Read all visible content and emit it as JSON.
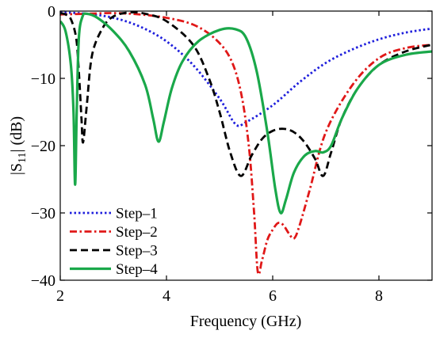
{
  "chart_data": {
    "type": "line",
    "xlabel": "Frequency (GHz)",
    "ylabel": {
      "prefix": "|S",
      "sub": "11",
      "suffix": "| (dB)"
    },
    "xlim": [
      2,
      9
    ],
    "ylim": [
      -40,
      0
    ],
    "xticks": [
      2,
      4,
      6,
      8
    ],
    "yticks": [
      0,
      -10,
      -20,
      -30,
      -40
    ],
    "grid": false,
    "legend_position": "bottom-left",
    "series": [
      {
        "name": "Step–1",
        "color": "#1f1fdc",
        "dash": "dotted",
        "x": [
          2.0,
          2.5,
          3.0,
          3.5,
          4.0,
          4.5,
          5.0,
          5.3,
          5.5,
          6.0,
          6.5,
          7.0,
          7.5,
          8.0,
          8.5,
          9.0
        ],
        "y": [
          -0.2,
          -0.4,
          -1.0,
          -2.3,
          -4.5,
          -8.0,
          -13.0,
          -16.8,
          -16.5,
          -14.0,
          -10.6,
          -7.7,
          -5.7,
          -4.2,
          -3.2,
          -2.6
        ]
      },
      {
        "name": "Step–2",
        "color": "#e01818",
        "dash": "dashdot",
        "x": [
          2.0,
          2.5,
          3.0,
          3.5,
          4.0,
          4.5,
          4.9,
          5.2,
          5.4,
          5.55,
          5.65,
          5.72,
          5.8,
          5.9,
          6.0,
          6.1,
          6.2,
          6.3,
          6.4,
          6.5,
          6.7,
          7.0,
          7.5,
          8.0,
          8.5,
          9.0
        ],
        "y": [
          -0.5,
          -0.4,
          -0.3,
          -0.5,
          -1.0,
          -2.0,
          -4.0,
          -7.0,
          -12.0,
          -20.0,
          -30.0,
          -38.8,
          -37.0,
          -34.0,
          -32.5,
          -31.5,
          -31.8,
          -33.0,
          -33.8,
          -32.0,
          -26.5,
          -18.0,
          -11.0,
          -7.0,
          -5.5,
          -5.0
        ]
      },
      {
        "name": "Step–3",
        "color": "#000000",
        "dash": "dashed",
        "x": [
          2.0,
          2.1,
          2.2,
          2.3,
          2.35,
          2.4,
          2.43,
          2.5,
          2.6,
          2.8,
          3.0,
          3.3,
          3.6,
          4.0,
          4.5,
          4.8,
          5.0,
          5.2,
          5.4,
          5.6,
          5.8,
          6.0,
          6.2,
          6.4,
          6.6,
          6.8,
          6.95,
          7.1,
          7.3,
          7.6,
          8.0,
          8.5,
          9.0
        ],
        "y": [
          -0.3,
          -0.5,
          -1.2,
          -4.0,
          -9.0,
          -16.0,
          -19.5,
          -14.0,
          -6.5,
          -2.5,
          -0.8,
          -0.2,
          -0.4,
          -1.5,
          -5.0,
          -10.0,
          -15.0,
          -21.0,
          -24.5,
          -21.5,
          -19.0,
          -17.8,
          -17.5,
          -18.0,
          -19.5,
          -22.0,
          -24.5,
          -21.0,
          -16.0,
          -11.5,
          -8.0,
          -6.0,
          -5.0
        ]
      },
      {
        "name": "Step–4",
        "color": "#1aa84a",
        "dash": "solid",
        "x": [
          2.0,
          2.1,
          2.2,
          2.25,
          2.28,
          2.31,
          2.35,
          2.42,
          2.5,
          2.7,
          3.0,
          3.3,
          3.6,
          3.75,
          3.85,
          3.95,
          4.1,
          4.3,
          4.6,
          5.0,
          5.3,
          5.5,
          5.7,
          5.9,
          6.05,
          6.15,
          6.25,
          6.4,
          6.6,
          6.8,
          6.95,
          7.1,
          7.3,
          7.6,
          8.0,
          8.5,
          9.0
        ],
        "y": [
          -1.5,
          -3.0,
          -8.0,
          -15.0,
          -25.8,
          -15.0,
          -4.0,
          -0.8,
          -0.4,
          -1.0,
          -3.0,
          -6.0,
          -11.0,
          -16.0,
          -19.4,
          -16.5,
          -11.5,
          -7.5,
          -4.5,
          -2.8,
          -2.7,
          -4.0,
          -9.0,
          -18.0,
          -26.5,
          -30.0,
          -28.0,
          -24.0,
          -21.5,
          -20.8,
          -21.0,
          -20.0,
          -16.0,
          -11.5,
          -8.0,
          -6.5,
          -6.0
        ]
      }
    ]
  }
}
